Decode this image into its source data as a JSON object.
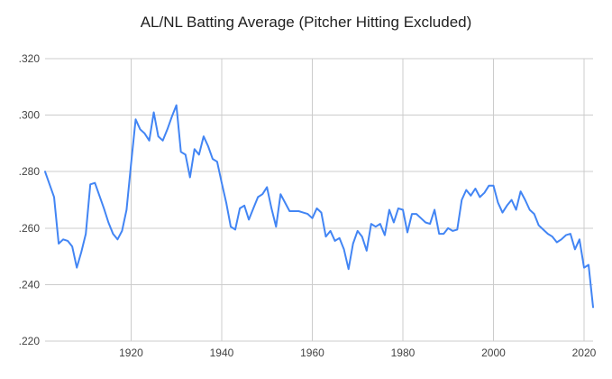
{
  "chart_data": {
    "type": "line",
    "title": "AL/NL Batting Average (Pitcher Hitting Excluded)",
    "xlabel": "",
    "ylabel": "",
    "legend": "none",
    "grid": true,
    "line_color": "#4285f4",
    "gridline_color": "#cccccc",
    "axis_label_color": "#424242",
    "title_color": "#212121",
    "xlim": [
      1901,
      2022
    ],
    "ylim": [
      0.22,
      0.32
    ],
    "x_ticks": [
      {
        "label": "1920",
        "value": 1920
      },
      {
        "label": "1940",
        "value": 1940
      },
      {
        "label": "1960",
        "value": 1960
      },
      {
        "label": "1980",
        "value": 1980
      },
      {
        "label": "2000",
        "value": 2000
      },
      {
        "label": "2020",
        "value": 2020
      }
    ],
    "y_ticks": [
      {
        "label": ".220",
        "value": 0.22
      },
      {
        "label": ".240",
        "value": 0.24
      },
      {
        "label": ".260",
        "value": 0.26
      },
      {
        "label": ".280",
        "value": 0.28
      },
      {
        "label": ".300",
        "value": 0.3
      },
      {
        "label": ".320",
        "value": 0.32
      }
    ],
    "years": {
      "start": 1901,
      "end": 2022,
      "step": 1
    },
    "values": [
      0.28,
      0.2755,
      0.271,
      0.2545,
      0.256,
      0.2555,
      0.2535,
      0.246,
      0.2515,
      0.258,
      0.2755,
      0.276,
      0.2715,
      0.267,
      0.262,
      0.258,
      0.256,
      0.259,
      0.2665,
      0.283,
      0.2985,
      0.295,
      0.2935,
      0.291,
      0.301,
      0.2925,
      0.291,
      0.295,
      0.2995,
      0.3035,
      0.287,
      0.286,
      0.278,
      0.288,
      0.286,
      0.2925,
      0.289,
      0.2845,
      0.2835,
      0.276,
      0.269,
      0.2605,
      0.2595,
      0.267,
      0.268,
      0.263,
      0.267,
      0.271,
      0.272,
      0.2745,
      0.267,
      0.2605,
      0.272,
      0.269,
      0.266,
      0.266,
      0.266,
      0.2655,
      0.265,
      0.2635,
      0.267,
      0.2655,
      0.257,
      0.259,
      0.2555,
      0.2565,
      0.2525,
      0.2455,
      0.2545,
      0.259,
      0.257,
      0.252,
      0.2615,
      0.2605,
      0.2615,
      0.2575,
      0.2665,
      0.262,
      0.267,
      0.2665,
      0.2585,
      0.265,
      0.265,
      0.2635,
      0.262,
      0.2615,
      0.2665,
      0.258,
      0.258,
      0.26,
      0.259,
      0.2595,
      0.27,
      0.2735,
      0.2715,
      0.274,
      0.271,
      0.2725,
      0.275,
      0.275,
      0.269,
      0.2655,
      0.268,
      0.27,
      0.2665,
      0.273,
      0.27,
      0.2665,
      0.265,
      0.261,
      0.2595,
      0.258,
      0.257,
      0.255,
      0.256,
      0.2575,
      0.258,
      0.2525,
      0.256,
      0.246,
      0.247,
      0.232
    ]
  }
}
